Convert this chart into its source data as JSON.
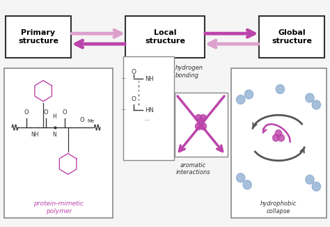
{
  "bg_color": "#f5f5f5",
  "purple": "#BB44AA",
  "purple_light": "#DDA0CC",
  "dark": "#333333",
  "gray": "#666666",
  "light_gray": "#999999",
  "blue": "#88AACE",
  "label_protein": "protein-mimetic\npolymer",
  "label_hbond": "hydrogen\nbonding",
  "label_aromatic": "aromatic\ninteractions",
  "label_hydrophobic": "hydrophobic\ncollapse"
}
